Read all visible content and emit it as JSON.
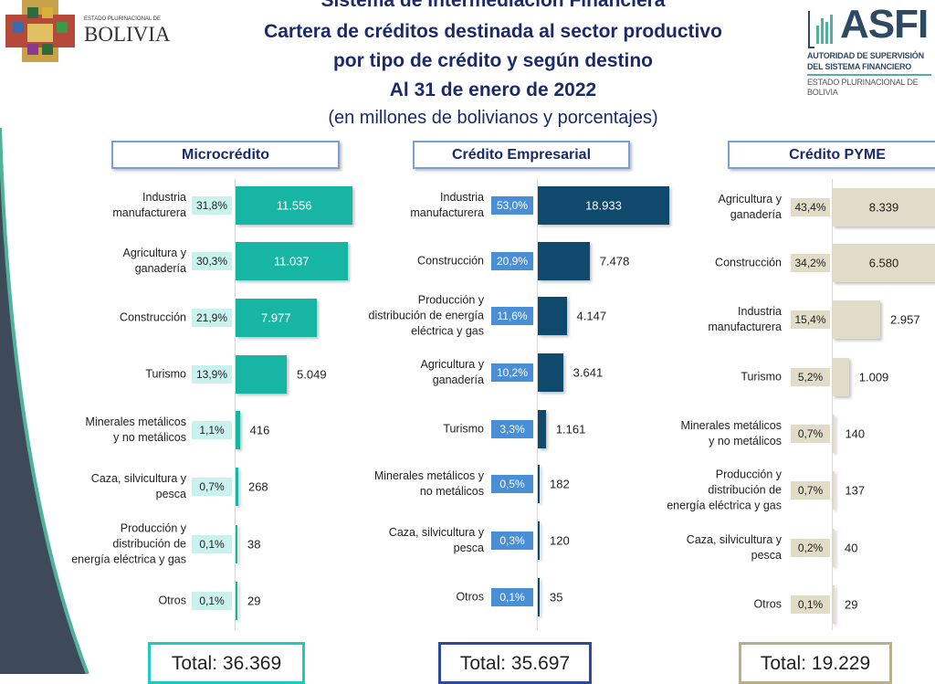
{
  "header": {
    "title_lines": [
      "Sistema de Intermediación Financiera",
      "Cartera de créditos destinada al sector productivo",
      "por tipo de crédito y según destino",
      "Al 31 de enero de 2022"
    ],
    "subtitle": "(en millones de bolivianos y porcentajes)",
    "logo_left": {
      "small": "ESTADO PLURINACIONAL DE",
      "big": "BOLIVIA"
    },
    "logo_right": {
      "big": "ASFI",
      "line1": "AUTORIDAD DE SUPERVISIÓN",
      "line2": "DEL SISTEMA FINANCIERO",
      "line3": "ESTADO PLURINACIONAL DE BOLIVIA"
    }
  },
  "colors": {
    "title": "#1b2a6b",
    "micro": "#17b6a4",
    "micro_pct": "#c9f2ee",
    "empresarial": "#0f4a6c",
    "empresarial_pct": "#4a8fd6",
    "pyme": "#e0dcc7",
    "pyme_pct": "#e0dcc7",
    "decor_dark": "#3e4a5a",
    "decor_teal": "#4fb39a"
  },
  "chart_data": [
    {
      "type": "bar",
      "orientation": "horizontal",
      "title": "Microcrédito",
      "categories": [
        "Industria\nmanufacturera",
        "Agricultura y\nganadería",
        "Construcción",
        "Turismo",
        "Minerales metálicos\ny no metálicos",
        "Caza, silvicultura y\npesca",
        "Producción y\ndistribución de\nenergía eléctrica y gas",
        "Otros"
      ],
      "values": [
        11556,
        11037,
        7977,
        5049,
        416,
        268,
        38,
        29
      ],
      "value_labels": [
        "11.556",
        "11.037",
        "7.977",
        "5.049",
        "416",
        "268",
        "38",
        "29"
      ],
      "percentages": [
        "31,8%",
        "30,3%",
        "21,9%",
        "13,9%",
        "1,1%",
        "0,7%",
        "0,1%",
        "0,1%"
      ],
      "total": "Total: 36.369"
    },
    {
      "type": "bar",
      "orientation": "horizontal",
      "title": "Crédito Empresarial",
      "categories": [
        "Industria\nmanufacturera",
        "Construcción",
        "Producción y\ndistribución de energía\neléctrica y gas",
        "Agricultura y\nganadería",
        "Turismo",
        "Minerales metálicos y\nno metálicos",
        "Caza, silvicultura y\npesca",
        "Otros"
      ],
      "values": [
        18933,
        7478,
        4147,
        3641,
        1161,
        182,
        120,
        35
      ],
      "value_labels": [
        "18.933",
        "7.478",
        "4.147",
        "3.641",
        "1.161",
        "182",
        "120",
        "35"
      ],
      "percentages": [
        "53,0%",
        "20,9%",
        "11,6%",
        "10,2%",
        "3,3%",
        "0,5%",
        "0,3%",
        "0,1%"
      ],
      "total": "Total: 35.697"
    },
    {
      "type": "bar",
      "orientation": "horizontal",
      "title": "Crédito PYME",
      "categories": [
        "Agricultura y\nganadería",
        "Construcción",
        "Industria\nmanufacturera",
        "Turismo",
        "Minerales metálicos\ny no metálicos",
        "Producción y\ndistribución de\nenergía eléctrica y gas",
        "Caza, silvicultura y\npesca",
        "Otros"
      ],
      "values": [
        8339,
        6580,
        2957,
        1009,
        140,
        137,
        40,
        29
      ],
      "value_labels": [
        "8.339",
        "6.580",
        "2.957",
        "1.009",
        "140",
        "137",
        "40",
        "29"
      ],
      "percentages": [
        "43,4%",
        "34,2%",
        "15,4%",
        "5,2%",
        "0,7%",
        "0,7%",
        "0,2%",
        "0,1%"
      ],
      "total": "Total: 19.229"
    }
  ]
}
